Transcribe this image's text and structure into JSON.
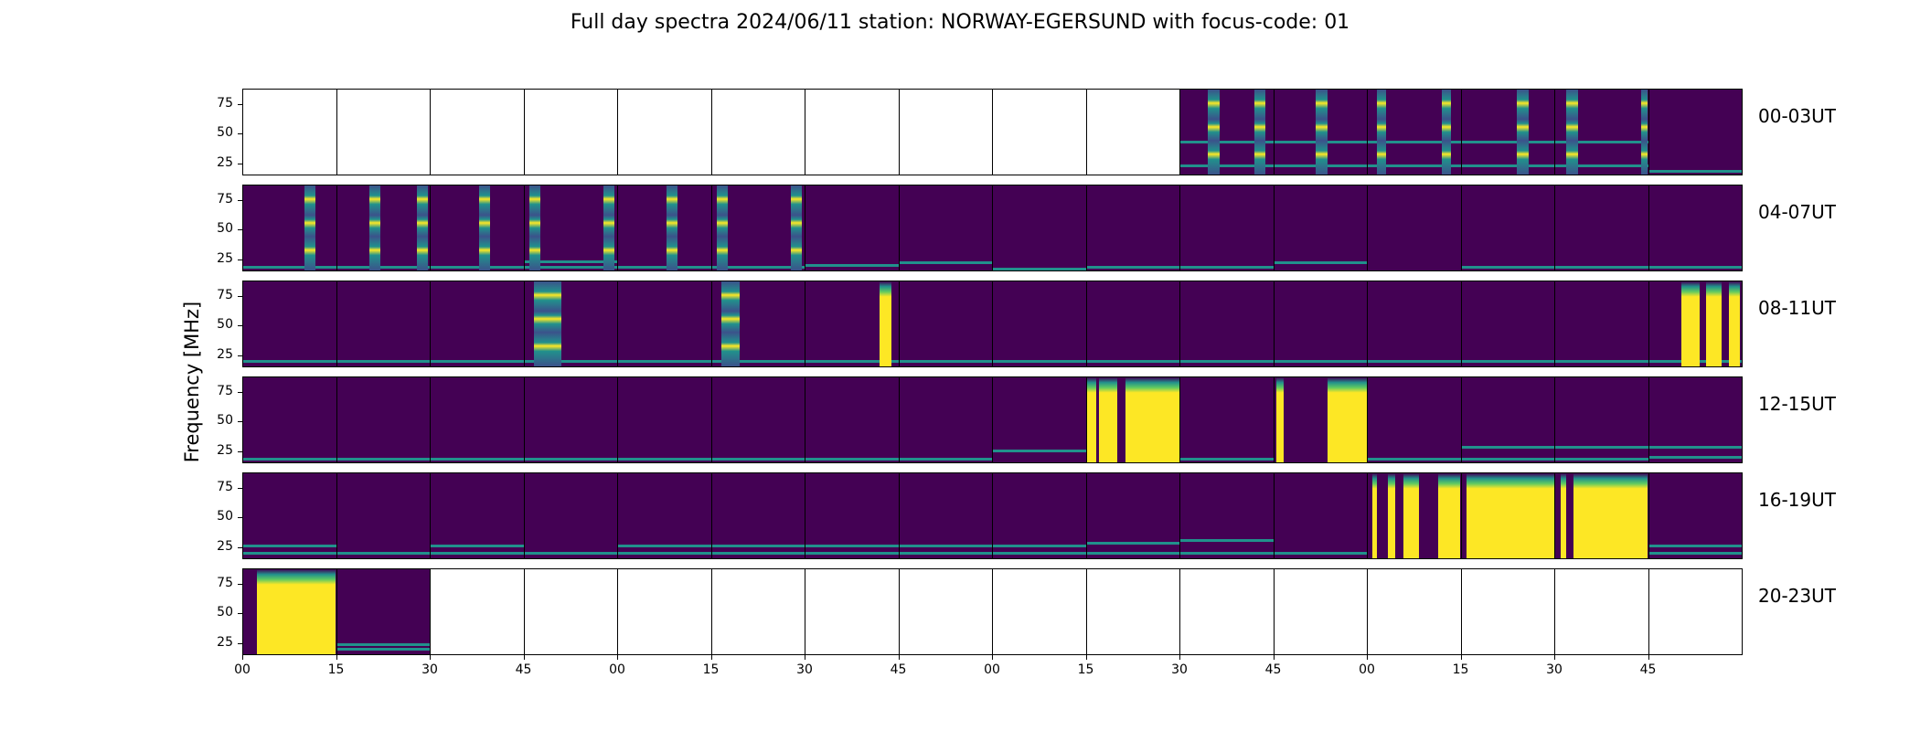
{
  "title": "Full day spectra 2024/06/11 station: NORWAY-EGERSUND with focus-code: 01",
  "chart_data": {
    "type": "heatmap",
    "title": "Full day spectra 2024/06/11 station: NORWAY-EGERSUND with focus-code: 01",
    "ylabel": "Frequency [MHz]",
    "ylim": [
      15,
      88
    ],
    "yticks": [
      25,
      50,
      75
    ],
    "xtick_labels": [
      "00",
      "15",
      "30",
      "45",
      "00",
      "15",
      "30",
      "45",
      "00",
      "15",
      "30",
      "45",
      "00",
      "15",
      "30",
      "45"
    ],
    "colormap": [
      "#440154",
      "#3b528b",
      "#21918c",
      "#5ec962",
      "#fde725"
    ],
    "rows": [
      {
        "label": "00-03UT",
        "panels": [
          {
            "filled": false
          },
          {
            "filled": false
          },
          {
            "filled": false
          },
          {
            "filled": false
          },
          {
            "filled": false
          },
          {
            "filled": false
          },
          {
            "filled": false
          },
          {
            "filled": false
          },
          {
            "filled": false
          },
          {
            "filled": false
          },
          {
            "filled": true,
            "bright": [],
            "bars": [
              [
                0.3,
                0.42
              ],
              [
                0.8,
                0.92
              ]
            ],
            "bands": [
              25,
              45
            ]
          },
          {
            "filled": true,
            "bright": [],
            "bars": [
              [
                0.45,
                0.58
              ]
            ],
            "bands": [
              25,
              45
            ]
          },
          {
            "filled": true,
            "bright": [],
            "bars": [
              [
                0.1,
                0.2
              ],
              [
                0.8,
                0.9
              ]
            ],
            "bands": [
              25,
              45
            ]
          },
          {
            "filled": true,
            "bright": [],
            "bars": [
              [
                0.6,
                0.72
              ]
            ],
            "bands": [
              25,
              45
            ]
          },
          {
            "filled": true,
            "bright": [],
            "bars": [
              [
                0.12,
                0.25
              ],
              [
                0.93,
                1.0
              ]
            ],
            "bands": [
              25,
              45
            ]
          },
          {
            "filled": true,
            "bright": [],
            "bars": [],
            "bands": [
              20
            ]
          }
        ]
      },
      {
        "label": "04-07UT",
        "panels": [
          {
            "filled": true,
            "bright": [],
            "bars": [
              [
                0.66,
                0.78
              ]
            ],
            "bands": [
              20
            ]
          },
          {
            "filled": true,
            "bright": [],
            "bars": [
              [
                0.35,
                0.47
              ],
              [
                0.86,
                0.98
              ]
            ],
            "bands": [
              20
            ]
          },
          {
            "filled": true,
            "bright": [],
            "bars": [
              [
                0.52,
                0.64
              ]
            ],
            "bands": [
              20
            ]
          },
          {
            "filled": true,
            "bright": [],
            "bars": [
              [
                0.05,
                0.17
              ],
              [
                0.85,
                0.97
              ]
            ],
            "bands": [
              20,
              25
            ]
          },
          {
            "filled": true,
            "bright": [],
            "bars": [
              [
                0.52,
                0.64
              ]
            ],
            "bands": [
              20
            ]
          },
          {
            "filled": true,
            "bright": [],
            "bars": [
              [
                0.05,
                0.17
              ],
              [
                0.85,
                0.97
              ]
            ],
            "bands": [
              20
            ]
          },
          {
            "filled": true,
            "bright": [],
            "bars": [],
            "bands": [
              22
            ]
          },
          {
            "filled": true,
            "bright": [],
            "bars": [],
            "bands": [
              24
            ]
          },
          {
            "filled": true,
            "bright": [],
            "bars": [],
            "bands": [
              19
            ]
          },
          {
            "filled": true,
            "bright": [],
            "bars": [],
            "bands": [
              20
            ]
          },
          {
            "filled": true,
            "bright": [],
            "bars": [],
            "bands": [
              20
            ]
          },
          {
            "filled": true,
            "bright": [],
            "bars": [],
            "bands": [
              24
            ]
          },
          {
            "filled": true,
            "bright": [],
            "bars": [],
            "bands": []
          },
          {
            "filled": true,
            "bright": [],
            "bars": [],
            "bands": [
              20
            ]
          },
          {
            "filled": true,
            "bright": [],
            "bars": [],
            "bands": [
              20
            ]
          },
          {
            "filled": true,
            "bright": [],
            "bars": [],
            "bands": [
              20
            ]
          }
        ]
      },
      {
        "label": "08-11UT",
        "panels": [
          {
            "filled": true,
            "bright": [],
            "bars": [],
            "bands": [
              22
            ]
          },
          {
            "filled": true,
            "bright": [],
            "bars": [],
            "bands": [
              22
            ]
          },
          {
            "filled": true,
            "bright": [],
            "bars": [],
            "bands": [
              22
            ]
          },
          {
            "filled": true,
            "bright": [],
            "bars": [
              [
                0.1,
                0.4
              ]
            ],
            "bands": [
              22
            ]
          },
          {
            "filled": true,
            "bright": [],
            "bars": [],
            "bands": [
              22
            ]
          },
          {
            "filled": true,
            "bright": [],
            "bars": [
              [
                0.1,
                0.3
              ]
            ],
            "bands": [
              22
            ]
          },
          {
            "filled": true,
            "bright": [
              [
                0.8,
                0.93
              ]
            ],
            "bars": [],
            "bands": [
              22
            ]
          },
          {
            "filled": true,
            "bright": [],
            "bars": [],
            "bands": [
              22
            ]
          },
          {
            "filled": true,
            "bright": [],
            "bars": [],
            "bands": [
              22
            ]
          },
          {
            "filled": true,
            "bright": [],
            "bars": [],
            "bands": [
              22
            ]
          },
          {
            "filled": true,
            "bright": [],
            "bars": [],
            "bands": [
              22
            ]
          },
          {
            "filled": true,
            "bright": [],
            "bars": [],
            "bands": [
              22
            ]
          },
          {
            "filled": true,
            "bright": [],
            "bars": [],
            "bands": [
              22
            ]
          },
          {
            "filled": true,
            "bright": [],
            "bars": [],
            "bands": [
              22
            ]
          },
          {
            "filled": true,
            "bright": [],
            "bars": [],
            "bands": [
              22
            ]
          },
          {
            "filled": true,
            "bright": [
              [
                0.35,
                0.55
              ],
              [
                0.62,
                0.78
              ],
              [
                0.86,
                0.98
              ]
            ],
            "bars": [],
            "bands": [
              22
            ]
          }
        ]
      },
      {
        "label": "12-15UT",
        "panels": [
          {
            "filled": true,
            "bright": [],
            "bars": [],
            "bands": [
              20
            ]
          },
          {
            "filled": true,
            "bright": [],
            "bars": [],
            "bands": [
              20
            ]
          },
          {
            "filled": true,
            "bright": [],
            "bars": [],
            "bands": [
              20
            ]
          },
          {
            "filled": true,
            "bright": [],
            "bars": [],
            "bands": [
              20
            ]
          },
          {
            "filled": true,
            "bright": [],
            "bars": [],
            "bands": [
              20
            ]
          },
          {
            "filled": true,
            "bright": [],
            "bars": [],
            "bands": [
              20
            ]
          },
          {
            "filled": true,
            "bright": [],
            "bars": [],
            "bands": [
              20
            ]
          },
          {
            "filled": true,
            "bright": [],
            "bars": [],
            "bands": [
              20
            ]
          },
          {
            "filled": true,
            "bright": [],
            "bars": [],
            "bands": [
              27
            ]
          },
          {
            "filled": true,
            "bright": [
              [
                0.0,
                0.1
              ],
              [
                0.13,
                0.33
              ],
              [
                0.42,
                1.0
              ]
            ],
            "bars": [],
            "bands": []
          },
          {
            "filled": true,
            "bright": [],
            "bars": [],
            "bands": [
              20
            ]
          },
          {
            "filled": true,
            "bright": [
              [
                0.02,
                0.1
              ],
              [
                0.58,
                1.0
              ]
            ],
            "bars": [],
            "bands": []
          },
          {
            "filled": true,
            "bright": [],
            "bars": [],
            "bands": [
              20
            ]
          },
          {
            "filled": true,
            "bright": [],
            "bars": [],
            "bands": [
              20,
              30
            ]
          },
          {
            "filled": true,
            "bright": [],
            "bars": [],
            "bands": [
              20,
              30
            ]
          },
          {
            "filled": true,
            "bright": [],
            "bars": [],
            "bands": [
              22,
              30
            ]
          }
        ]
      },
      {
        "label": "16-19UT",
        "panels": [
          {
            "filled": true,
            "bright": [],
            "bars": [],
            "bands": [
              22,
              28
            ]
          },
          {
            "filled": true,
            "bright": [],
            "bars": [],
            "bands": [
              22
            ]
          },
          {
            "filled": true,
            "bright": [],
            "bars": [],
            "bands": [
              22,
              28
            ]
          },
          {
            "filled": true,
            "bright": [],
            "bars": [],
            "bands": [
              22
            ]
          },
          {
            "filled": true,
            "bright": [],
            "bars": [],
            "bands": [
              22,
              28
            ]
          },
          {
            "filled": true,
            "bright": [],
            "bars": [],
            "bands": [
              22,
              28
            ]
          },
          {
            "filled": true,
            "bright": [],
            "bars": [],
            "bands": [
              22,
              28
            ]
          },
          {
            "filled": true,
            "bright": [],
            "bars": [],
            "bands": [
              22,
              28
            ]
          },
          {
            "filled": true,
            "bright": [],
            "bars": [],
            "bands": [
              22,
              28
            ]
          },
          {
            "filled": true,
            "bright": [],
            "bars": [],
            "bands": [
              22,
              30
            ]
          },
          {
            "filled": true,
            "bright": [],
            "bars": [],
            "bands": [
              22,
              33
            ]
          },
          {
            "filled": true,
            "bright": [],
            "bars": [],
            "bands": [
              22
            ]
          },
          {
            "filled": true,
            "bright": [
              [
                0.05,
                0.1
              ],
              [
                0.22,
                0.3
              ],
              [
                0.38,
                0.55
              ],
              [
                0.76,
                1.0
              ]
            ],
            "bars": [],
            "bands": []
          },
          {
            "filled": true,
            "bright": [
              [
                0.05,
                1.0
              ]
            ],
            "bars": [],
            "bands": []
          },
          {
            "filled": true,
            "bright": [
              [
                0.06,
                0.12
              ],
              [
                0.2,
                1.0
              ]
            ],
            "bars": [],
            "bands": []
          },
          {
            "filled": true,
            "bright": [],
            "bars": [],
            "bands": [
              22,
              28
            ]
          }
        ]
      },
      {
        "label": "20-23UT",
        "panels": [
          {
            "filled": true,
            "bright": [
              [
                0.15,
                1.0
              ]
            ],
            "bars": [],
            "bands": []
          },
          {
            "filled": true,
            "bright": [],
            "bars": [],
            "bands": [
              22,
              26
            ]
          },
          {
            "filled": false
          },
          {
            "filled": false
          },
          {
            "filled": false
          },
          {
            "filled": false
          },
          {
            "filled": false
          },
          {
            "filled": false
          },
          {
            "filled": false
          },
          {
            "filled": false
          },
          {
            "filled": false
          },
          {
            "filled": false
          },
          {
            "filled": false
          },
          {
            "filled": false
          },
          {
            "filled": false
          },
          {
            "filled": false
          }
        ]
      }
    ]
  }
}
